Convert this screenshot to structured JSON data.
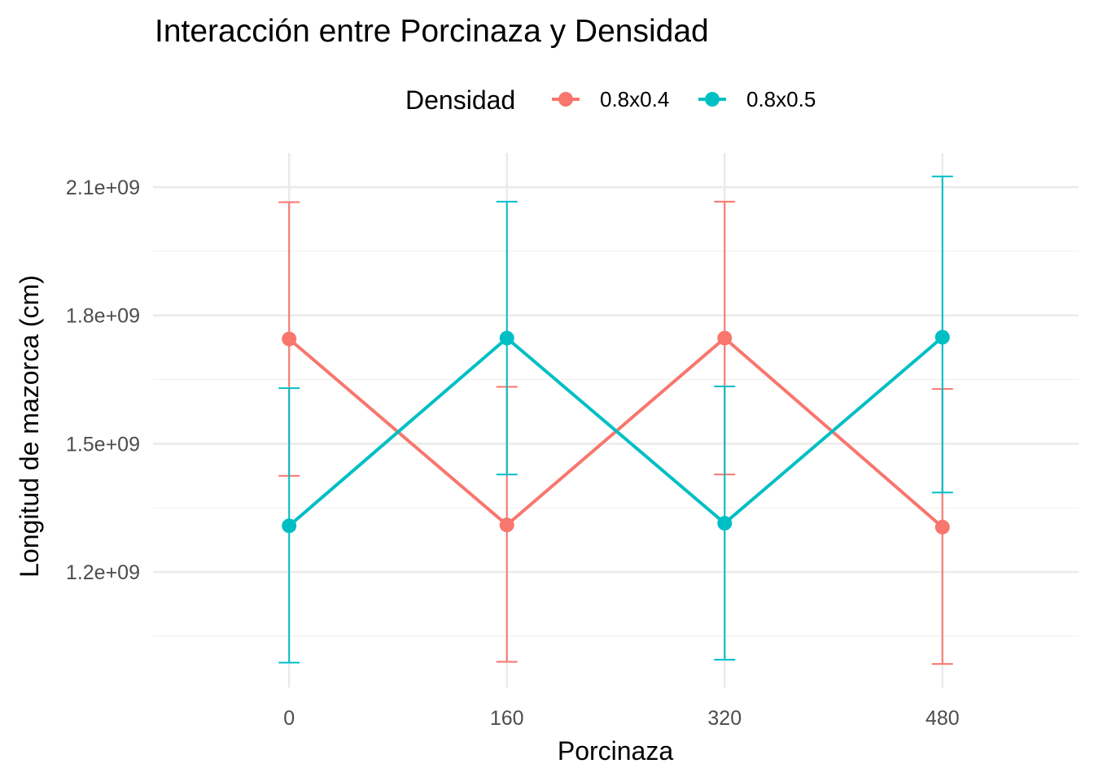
{
  "chart_data": {
    "type": "line",
    "title": "Interacción entre Porcinaza y Densidad",
    "xlabel": "Porcinaza",
    "ylabel": "Longitud de mazorca (cm)",
    "x": [
      0,
      160,
      320,
      480
    ],
    "x_tick_labels": [
      "0",
      "160",
      "320",
      "480"
    ],
    "xlim": [
      -100,
      580
    ],
    "ylim": [
      930000000,
      2180000000
    ],
    "y_ticks": [
      1200000000,
      1500000000,
      1800000000,
      2100000000
    ],
    "y_tick_labels": [
      "1.2e+09",
      "1.5e+09",
      "1.8e+09",
      "2.1e+09"
    ],
    "y_minor_ticks": [
      1050000000,
      1350000000,
      1650000000,
      1950000000
    ],
    "grid": true,
    "legend": {
      "title": "Densidad",
      "position": "top"
    },
    "series": [
      {
        "name": "0.8x0.4",
        "color": "#F8766D",
        "values": [
          1745000000,
          1310000000,
          1747000000,
          1305000000
        ],
        "error_low": [
          1425000000,
          990000000,
          1428000000,
          985000000
        ],
        "error_high": [
          2065000000,
          1633000000,
          2066000000,
          1628000000
        ]
      },
      {
        "name": "0.8x0.5",
        "color": "#00BFC4",
        "values": [
          1308000000,
          1747000000,
          1314000000,
          1749000000
        ],
        "error_low": [
          988000000,
          1428000000,
          995000000,
          1386000000
        ],
        "error_high": [
          1630000000,
          2066000000,
          1634000000,
          2125000000
        ]
      }
    ]
  }
}
